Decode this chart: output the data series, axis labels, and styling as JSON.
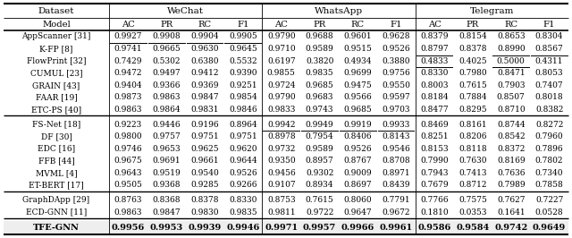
{
  "rows": [
    [
      "AppScanner [31]",
      "0.9927",
      "0.9908",
      "0.9904",
      "0.9905",
      "0.9790",
      "0.9688",
      "0.9601",
      "0.9628",
      "0.8379",
      "0.8154",
      "0.8653",
      "0.8304"
    ],
    [
      "K-FP [8]",
      "0.9741",
      "0.9665",
      "0.9630",
      "0.9645",
      "0.9710",
      "0.9589",
      "0.9515",
      "0.9526",
      "0.8797",
      "0.8378",
      "0.8990",
      "0.8567"
    ],
    [
      "FlowPrint [32]",
      "0.7429",
      "0.5302",
      "0.6380",
      "0.5532",
      "0.6197",
      "0.3820",
      "0.4934",
      "0.3880",
      "0.4833",
      "0.4025",
      "0.5000",
      "0.4311"
    ],
    [
      "CUMUL [23]",
      "0.9472",
      "0.9497",
      "0.9412",
      "0.9390",
      "0.9855",
      "0.9835",
      "0.9699",
      "0.9756",
      "0.8330",
      "0.7980",
      "0.8471",
      "0.8053"
    ],
    [
      "GRAIN [43]",
      "0.9404",
      "0.9366",
      "0.9369",
      "0.9251",
      "0.9724",
      "0.9685",
      "0.9475",
      "0.9550",
      "0.8003",
      "0.7615",
      "0.7903",
      "0.7407"
    ],
    [
      "FAAR [19]",
      "0.9873",
      "0.9863",
      "0.9847",
      "0.9854",
      "0.9790",
      "0.9683",
      "0.9566",
      "0.9597",
      "0.8184",
      "0.7884",
      "0.8507",
      "0.8018"
    ],
    [
      "ETC-PS [40]",
      "0.9863",
      "0.9864",
      "0.9831",
      "0.9846",
      "0.9833",
      "0.9743",
      "0.9685",
      "0.9703",
      "0.8477",
      "0.8295",
      "0.8710",
      "0.8382"
    ],
    [
      "FS-Net [18]",
      "0.9223",
      "0.9446",
      "0.9196",
      "0.8964",
      "0.9942",
      "0.9949",
      "0.9919",
      "0.9933",
      "0.8469",
      "0.8161",
      "0.8744",
      "0.8272"
    ],
    [
      "DF [30]",
      "0.9800",
      "0.9757",
      "0.9751",
      "0.9751",
      "0.8978",
      "0.7954",
      "0.8406",
      "0.8143",
      "0.8251",
      "0.8206",
      "0.8542",
      "0.7960"
    ],
    [
      "EDC [16]",
      "0.9746",
      "0.9653",
      "0.9625",
      "0.9620",
      "0.9732",
      "0.9589",
      "0.9526",
      "0.9546",
      "0.8153",
      "0.8118",
      "0.8372",
      "0.7896"
    ],
    [
      "FFB [44]",
      "0.9675",
      "0.9691",
      "0.9661",
      "0.9644",
      "0.9350",
      "0.8957",
      "0.8767",
      "0.8708",
      "0.7990",
      "0.7630",
      "0.8169",
      "0.7802"
    ],
    [
      "MVML [4]",
      "0.9643",
      "0.9519",
      "0.9540",
      "0.9526",
      "0.9456",
      "0.9302",
      "0.9009",
      "0.8971",
      "0.7943",
      "0.7413",
      "0.7636",
      "0.7340"
    ],
    [
      "ET-BERT [17]",
      "0.9505",
      "0.9368",
      "0.9285",
      "0.9266",
      "0.9107",
      "0.8934",
      "0.8697",
      "0.8439",
      "0.7679",
      "0.8712",
      "0.7989",
      "0.7858"
    ],
    [
      "GraphDApp [29]",
      "0.8763",
      "0.8368",
      "0.8378",
      "0.8330",
      "0.8753",
      "0.7615",
      "0.8060",
      "0.7791",
      "0.7766",
      "0.7575",
      "0.7627",
      "0.7227"
    ],
    [
      "ECD-GNN [11]",
      "0.9863",
      "0.9847",
      "0.9830",
      "0.9835",
      "0.9811",
      "0.9722",
      "0.9647",
      "0.9672",
      "0.1810",
      "0.0353",
      "0.1641",
      "0.0528"
    ],
    [
      "TFE-GNN",
      "0.9956",
      "0.9953",
      "0.9939",
      "0.9946",
      "0.9971",
      "0.9957",
      "0.9966",
      "0.9961",
      "0.9586",
      "0.9584",
      "0.9742",
      "0.9649"
    ]
  ],
  "underlined": [
    [
      0,
      1
    ],
    [
      0,
      2
    ],
    [
      0,
      3
    ],
    [
      0,
      4
    ],
    [
      1,
      9
    ],
    [
      1,
      11
    ],
    [
      1,
      12
    ],
    [
      2,
      9
    ],
    [
      2,
      11
    ],
    [
      7,
      5
    ],
    [
      7,
      6
    ],
    [
      7,
      7
    ],
    [
      7,
      8
    ],
    [
      12,
      10
    ],
    [
      14,
      5
    ]
  ],
  "bg_color": "#ffffff",
  "text_color": "#000000"
}
